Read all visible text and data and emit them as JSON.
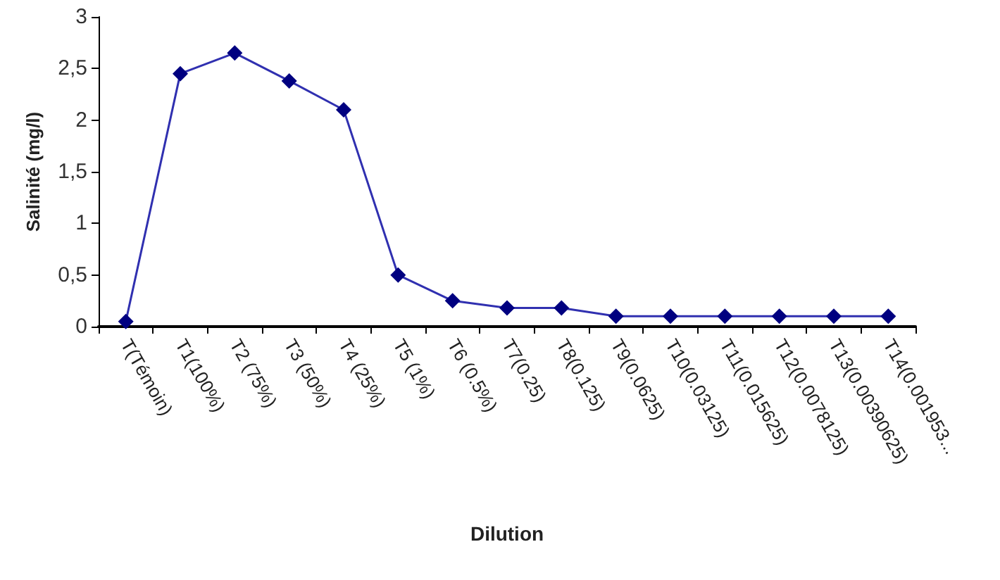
{
  "chart_data": {
    "type": "line",
    "xlabel": "Dilution",
    "ylabel": "Salinité (mg/l)",
    "categories": [
      "T(Témoin)",
      "T1(100%)",
      "T2 (75%)",
      "T3 (50%)",
      "T4 (25%)",
      "T5 (1%)",
      "T6 (0.5%)",
      "T7(0.25)",
      "T8(0.125)",
      "T9(0.0625)",
      "T10(0.03125)",
      "T11(0.015625)",
      "T12(0.0078125)",
      "T13(0.00390625)",
      "T14(0.001953..."
    ],
    "series": [
      {
        "color": "#000080",
        "values": [
          0.05,
          2.45,
          2.65,
          2.38,
          2.1,
          0.5,
          0.25,
          0.18,
          0.18,
          0.1,
          0.1,
          0.1,
          0.1,
          0.1,
          0.1
        ]
      }
    ],
    "ylim": [
      0,
      3
    ],
    "yticks": [
      0,
      {
        "value": 0.5,
        "label": "0,5"
      },
      1,
      {
        "value": 1.5,
        "label": "1,5"
      },
      2,
      {
        "value": 2.5,
        "label": "2,5"
      },
      3
    ],
    "grid": false,
    "marker": "diamond",
    "line_style": "solid"
  }
}
